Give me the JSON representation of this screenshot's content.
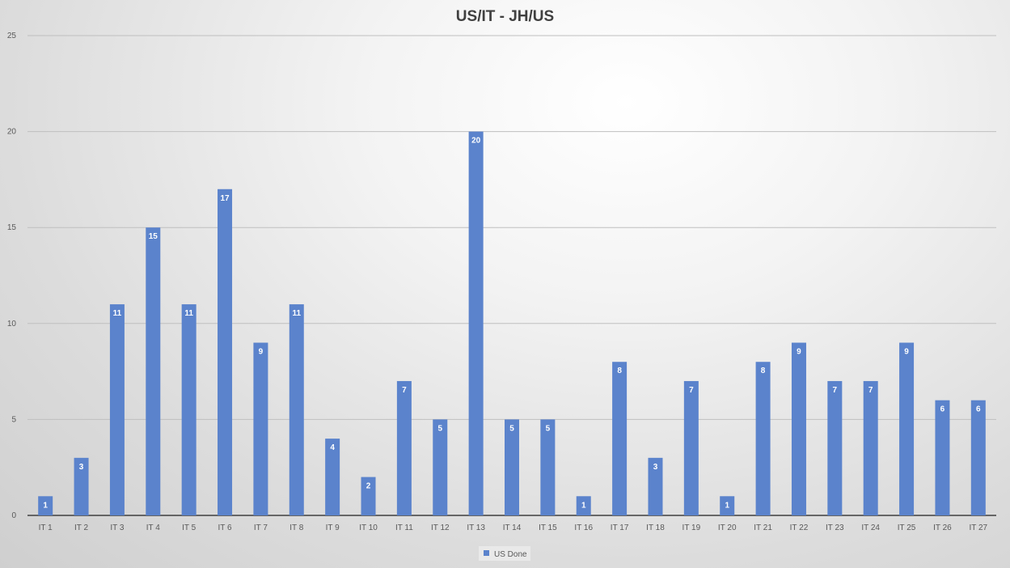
{
  "chart_data": {
    "type": "bar",
    "title": "US/IT  - JH/US",
    "xlabel": "",
    "ylabel": "",
    "ylim": [
      0,
      25
    ],
    "yticks": [
      0,
      5,
      10,
      15,
      20,
      25
    ],
    "grid": true,
    "legend_position": "bottom",
    "bar_color": "#5b83cc",
    "categories": [
      "IT 1",
      "IT 2",
      "IT 3",
      "IT 4",
      "IT 5",
      "IT 6",
      "IT 7",
      "IT 8",
      "IT 9",
      "IT 10",
      "IT 11",
      "IT 12",
      "IT 13",
      "IT 14",
      "IT 15",
      "IT 16",
      "IT 17",
      "IT 18",
      "IT 19",
      "IT 20",
      "IT 21",
      "IT 22",
      "IT 23",
      "IT 24",
      "IT 25",
      "IT 26",
      "IT 27"
    ],
    "series": [
      {
        "name": "US Done",
        "values": [
          1,
          3,
          11,
          15,
          11,
          17,
          9,
          11,
          4,
          2,
          7,
          5,
          20,
          5,
          5,
          1,
          8,
          3,
          7,
          1,
          8,
          9,
          7,
          7,
          9,
          6,
          6
        ]
      }
    ]
  }
}
